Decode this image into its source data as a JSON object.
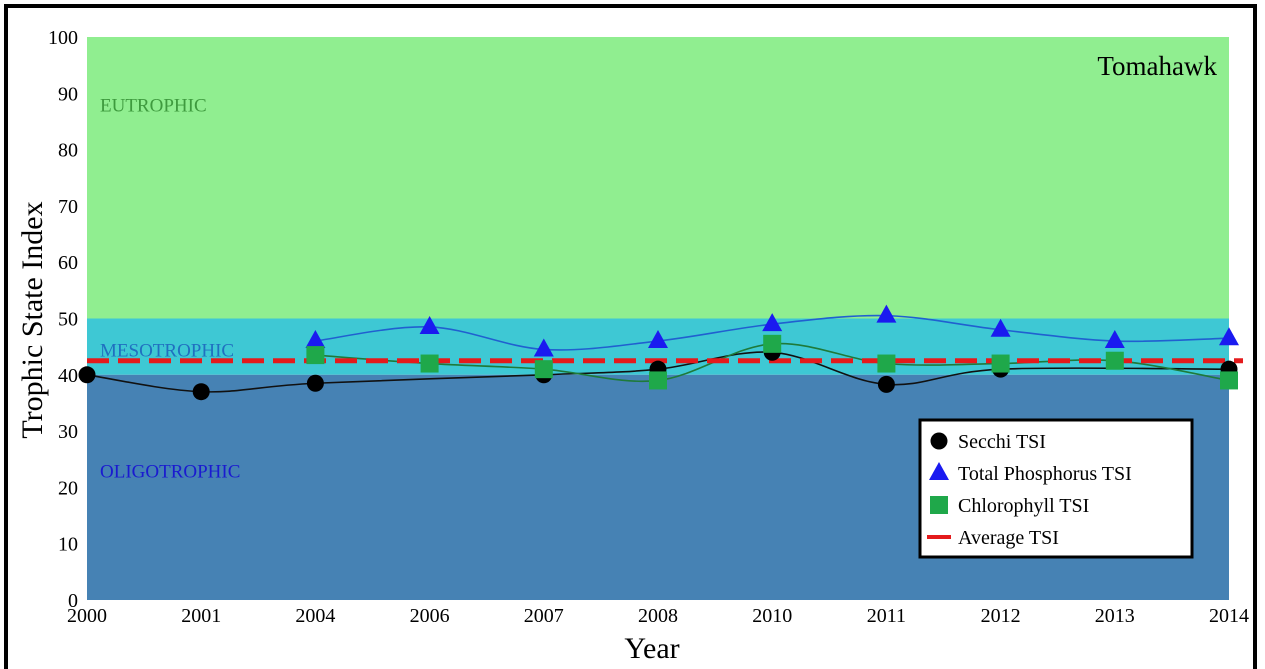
{
  "chart_data": {
    "type": "line",
    "title": "Tomahawk",
    "xlabel": "Year",
    "ylabel": "Trophic State Index",
    "ylim": [
      0,
      100
    ],
    "yticks": [
      0,
      10,
      20,
      30,
      40,
      50,
      60,
      70,
      80,
      90,
      100
    ],
    "categories": [
      "2000",
      "2001",
      "2004",
      "2006",
      "2007",
      "2008",
      "2010",
      "2011",
      "2012",
      "2013",
      "2014"
    ],
    "zones": [
      {
        "label": "EUTROPHIC",
        "from": 50,
        "to": 100,
        "color": "#90ee90",
        "label_color": "#3e9a3e",
        "label_value": 88
      },
      {
        "label": "MESOTROPHIC",
        "from": 40,
        "to": 50,
        "color": "#3ec8d4",
        "label_color": "#2070c0",
        "label_value": 44.5
      },
      {
        "label": "OLIGOTROPHIC",
        "from": 0,
        "to": 40,
        "color": "#4682b4",
        "label_color": "#1a1ad0",
        "label_value": 23
      }
    ],
    "series": [
      {
        "name": "Secchi TSI",
        "marker": "circle",
        "color": "#000000",
        "line_color": "#111111",
        "values": [
          40,
          37,
          38.5,
          null,
          40,
          41,
          44,
          38.3,
          41,
          null,
          41
        ]
      },
      {
        "name": "Total Phosphorus TSI",
        "marker": "triangle",
        "color": "#1a1af0",
        "line_color": "#2060d0",
        "values": [
          null,
          null,
          46,
          48.5,
          44.5,
          46,
          49,
          50.5,
          48,
          46,
          46.5
        ]
      },
      {
        "name": "Chlorophyll TSI",
        "marker": "square",
        "color": "#1fa84a",
        "line_color": "#1e7a3a",
        "values": [
          null,
          null,
          43.5,
          42,
          41,
          39,
          45.5,
          42,
          42,
          42.5,
          39
        ]
      }
    ],
    "average": {
      "name": "Average TSI",
      "value": 42.5,
      "color": "#e41a1c"
    },
    "legend_position": "bottom-right",
    "grid": false
  }
}
